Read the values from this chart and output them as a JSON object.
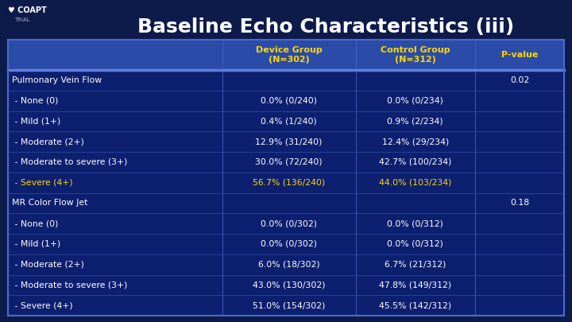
{
  "title": "Baseline Echo Characteristics (iii)",
  "title_color": "#FFFFFF",
  "title_fontsize": 18,
  "bg_color": "#0D1B4B",
  "header_bg": "#2B4BA8",
  "header_text_color": "#FFD700",
  "header_labels": [
    "Device Group\n(N=302)",
    "Control Group\n(N=312)",
    "P-value"
  ],
  "table_outer_color": "#4A6ACC",
  "table_body_bg": "#0D2070",
  "row_line_color": "#4A6ACC",
  "rows": [
    {
      "label": "Pulmonary Vein Flow",
      "device": "",
      "control": "",
      "pvalue": "0.02",
      "indent": false,
      "highlight": false
    },
    {
      "label": " - None (0)",
      "device": "0.0% (0/240)",
      "control": "0.0% (0/234)",
      "pvalue": "",
      "indent": true,
      "highlight": false
    },
    {
      "label": " - Mild (1+)",
      "device": "0.4% (1/240)",
      "control": "0.9% (2/234)",
      "pvalue": "",
      "indent": true,
      "highlight": false
    },
    {
      "label": " - Moderate (2+)",
      "device": "12.9% (31/240)",
      "control": "12.4% (29/234)",
      "pvalue": "",
      "indent": true,
      "highlight": false
    },
    {
      "label": " - Moderate to severe (3+)",
      "device": "30.0% (72/240)",
      "control": "42.7% (100/234)",
      "pvalue": "",
      "indent": true,
      "highlight": false
    },
    {
      "label": " - Severe (4+)",
      "device": "56.7% (136/240)",
      "control": "44.0% (103/234)",
      "pvalue": "",
      "indent": true,
      "highlight": true
    },
    {
      "label": "MR Color Flow Jet",
      "device": "",
      "control": "",
      "pvalue": "0.18",
      "indent": false,
      "highlight": false
    },
    {
      "label": " - None (0)",
      "device": "0.0% (0/302)",
      "control": "0.0% (0/312)",
      "pvalue": "",
      "indent": true,
      "highlight": false
    },
    {
      "label": " - Mild (1+)",
      "device": "0.0% (0/302)",
      "control": "0.0% (0/312)",
      "pvalue": "",
      "indent": true,
      "highlight": false
    },
    {
      "label": " - Moderate (2+)",
      "device": "6.0% (18/302)",
      "control": "6.7% (21/312)",
      "pvalue": "",
      "indent": true,
      "highlight": false
    },
    {
      "label": " - Moderate to severe (3+)",
      "device": "43.0% (130/302)",
      "control": "47.8% (149/312)",
      "pvalue": "",
      "indent": true,
      "highlight": false
    },
    {
      "label": " - Severe (4+)",
      "device": "51.0% (154/302)",
      "control": "45.5% (142/312)",
      "pvalue": "",
      "indent": true,
      "highlight": false
    }
  ],
  "text_color_normal": "#FFFFFF",
  "text_color_highlight": "#FFD700",
  "text_color_header": "#FFD700",
  "text_color_pvalue": "#FFFFFF",
  "col_splits": [
    0.385,
    0.625,
    0.84
  ]
}
